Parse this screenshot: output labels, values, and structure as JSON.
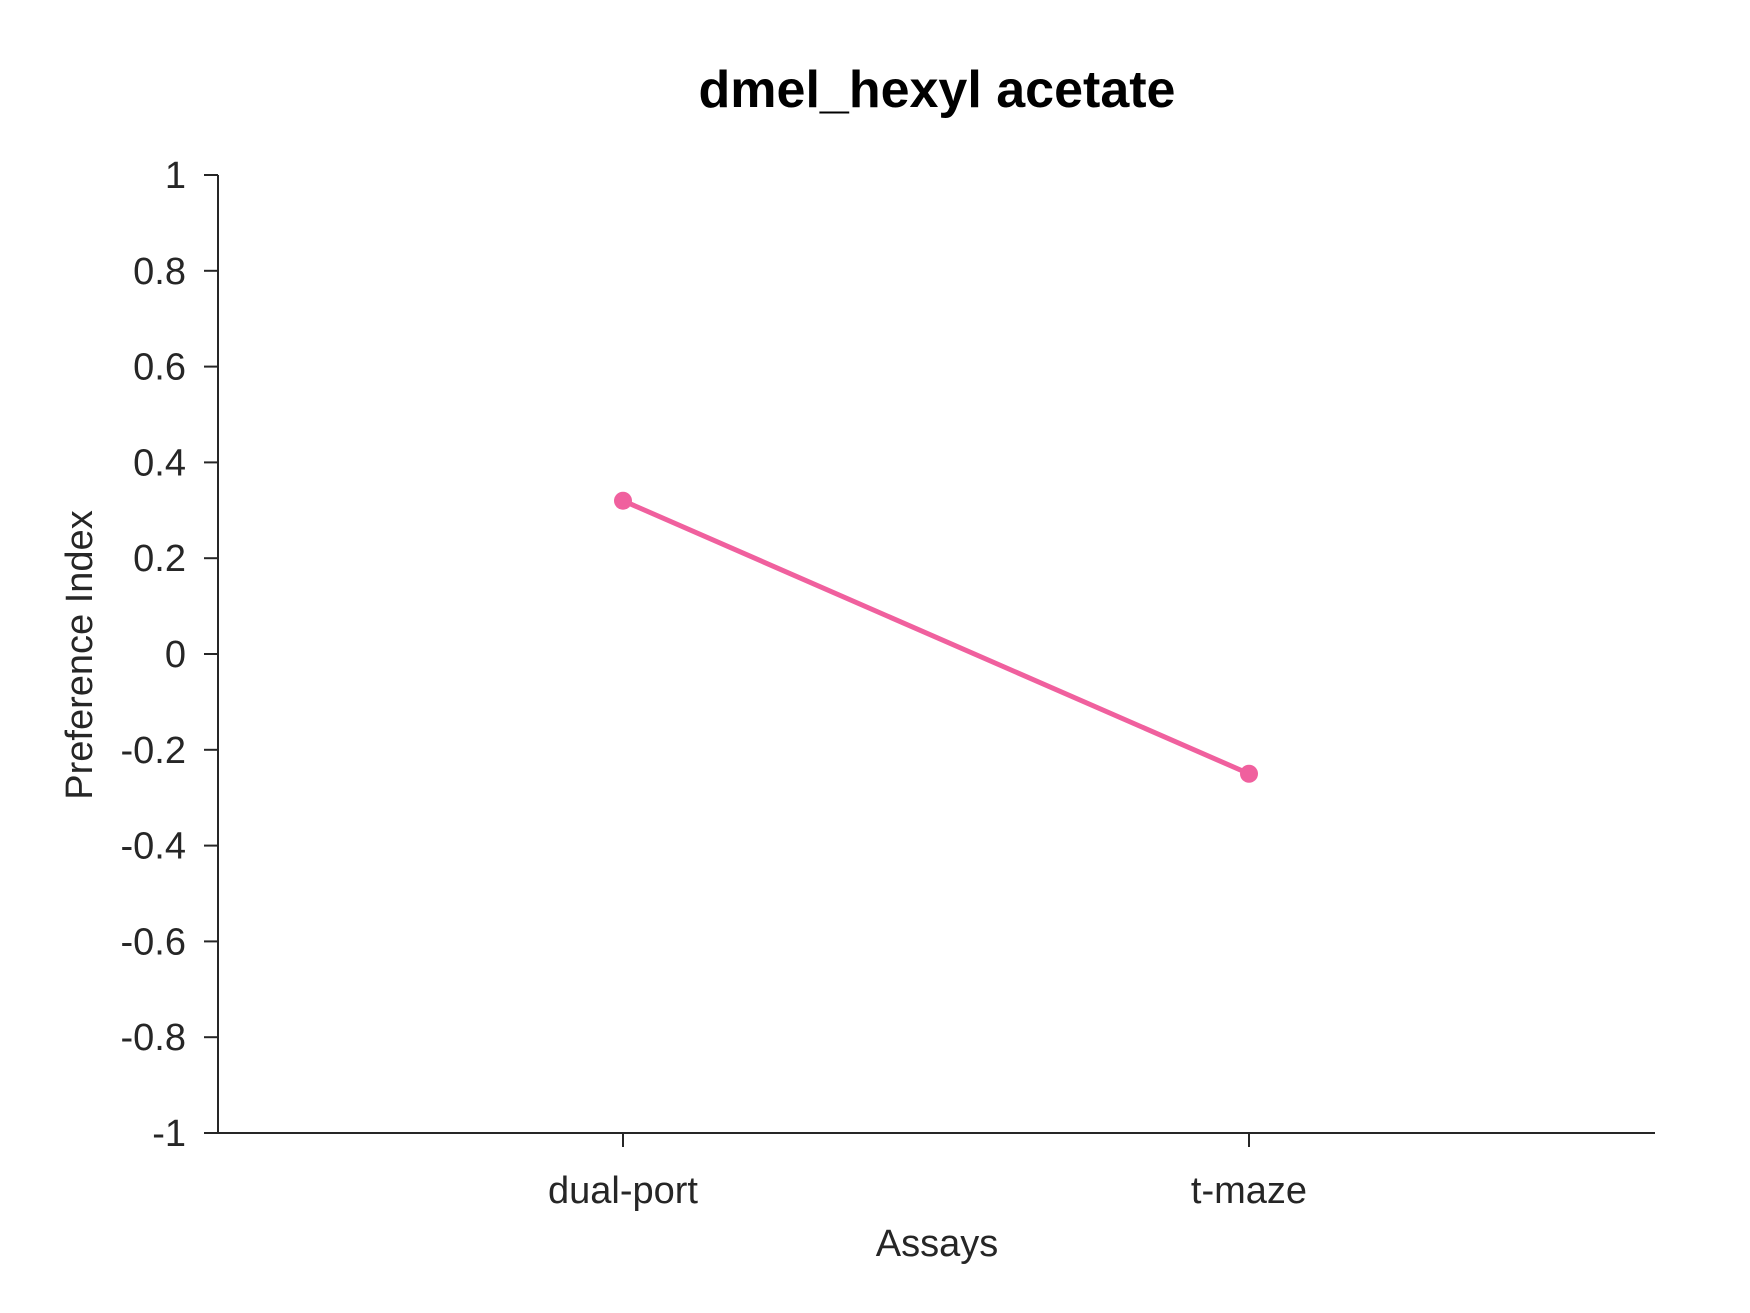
{
  "chart_data": {
    "type": "line",
    "title": "dmel_hexyl acetate",
    "xlabel": "Assays",
    "ylabel": "Preference Index",
    "categories": [
      "dual-port",
      "t-maze"
    ],
    "series": [
      {
        "values": [
          0.32,
          -0.25
        ],
        "color": "#f0609e"
      }
    ],
    "ylim": [
      -1,
      1
    ],
    "yticks": [
      1,
      0.8,
      0.6,
      0.4,
      0.2,
      0,
      -0.2,
      -0.4,
      -0.6,
      -0.8,
      -1
    ],
    "ytick_labels": [
      "1",
      "0.8",
      "0.6",
      "0.4",
      "0.2",
      "0",
      "-0.2",
      "-0.4",
      "-0.6",
      "-0.8",
      "-1"
    ],
    "grid": false,
    "legend": "none"
  }
}
